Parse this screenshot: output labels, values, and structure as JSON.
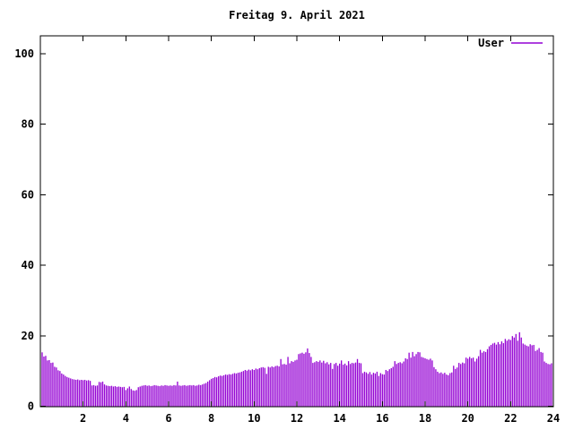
{
  "chart_data": {
    "type": "bar",
    "title": "Freitag 9. April 2021",
    "xlabel": "",
    "ylabel": "",
    "xlim": [
      0,
      24
    ],
    "ylim": [
      0,
      105
    ],
    "xticks": [
      2,
      4,
      6,
      8,
      10,
      12,
      14,
      16,
      18,
      20,
      22,
      24
    ],
    "yticks": [
      0,
      20,
      40,
      60,
      80,
      100
    ],
    "grid": false,
    "legend_position": "top-right",
    "legend": [
      {
        "name": "User",
        "color": "#9400d3"
      }
    ],
    "x_unit": "hour-of-day",
    "sample_interval_minutes": 5,
    "first_sample_hour": 0.0833,
    "values": [
      15.3,
      14.1,
      14.3,
      13.0,
      13.1,
      12.3,
      12.4,
      11.2,
      11.0,
      10.2,
      10.0,
      9.3,
      9.0,
      8.6,
      8.3,
      8.1,
      7.9,
      7.7,
      7.6,
      7.5,
      7.6,
      7.4,
      7.5,
      7.4,
      7.5,
      7.3,
      7.4,
      7.2,
      5.9,
      6.0,
      5.8,
      5.9,
      6.9,
      6.8,
      7.0,
      6.2,
      5.9,
      5.8,
      5.7,
      5.8,
      5.6,
      5.7,
      5.5,
      5.6,
      5.5,
      5.4,
      5.5,
      4.6,
      5.1,
      5.6,
      4.9,
      4.5,
      4.4,
      4.6,
      5.4,
      5.6,
      5.8,
      5.9,
      6.0,
      5.8,
      5.9,
      5.7,
      5.8,
      6.0,
      5.9,
      5.8,
      5.7,
      5.9,
      5.8,
      6.0,
      5.9,
      5.8,
      5.9,
      5.8,
      6.0,
      5.9,
      7.0,
      5.9,
      5.8,
      5.9,
      6.0,
      5.8,
      5.9,
      6.0,
      5.9,
      6.0,
      5.8,
      5.9,
      6.1,
      6.0,
      6.2,
      6.4,
      6.6,
      7.0,
      7.4,
      7.8,
      8.0,
      8.3,
      8.2,
      8.5,
      8.7,
      8.6,
      8.8,
      9.0,
      8.9,
      9.1,
      9.0,
      9.2,
      9.4,
      9.3,
      9.5,
      9.6,
      9.8,
      10.0,
      10.3,
      10.1,
      10.4,
      10.2,
      10.5,
      10.3,
      10.7,
      10.5,
      10.8,
      11.0,
      11.1,
      10.9,
      9.2,
      11.2,
      11.0,
      11.3,
      11.1,
      11.4,
      11.5,
      11.3,
      13.4,
      11.9,
      12.0,
      11.8,
      14.0,
      12.2,
      12.8,
      12.6,
      13.0,
      13.2,
      14.8,
      15.0,
      15.2,
      14.9,
      15.3,
      16.4,
      15.1,
      14.0,
      12.3,
      12.5,
      12.8,
      12.6,
      13.0,
      12.4,
      12.9,
      12.2,
      12.5,
      11.9,
      12.3,
      10.6,
      12.0,
      12.3,
      11.5,
      12.1,
      13.0,
      11.8,
      12.1,
      11.6,
      12.8,
      12.0,
      12.3,
      12.2,
      12.4,
      13.4,
      12.3,
      12.2,
      9.4,
      9.8,
      9.6,
      9.2,
      9.7,
      9.0,
      9.5,
      9.3,
      9.8,
      8.6,
      9.4,
      9.1,
      9.0,
      10.3,
      10.0,
      10.5,
      10.8,
      11.2,
      12.8,
      12.0,
      12.3,
      12.5,
      12.2,
      12.7,
      13.6,
      13.4,
      15.2,
      13.8,
      15.4,
      14.2,
      14.8,
      15.4,
      15.3,
      14.0,
      13.8,
      13.6,
      13.4,
      13.2,
      13.5,
      13.0,
      11.1,
      10.5,
      9.8,
      9.4,
      9.6,
      9.2,
      9.5,
      9.0,
      8.8,
      9.4,
      9.6,
      11.5,
      10.6,
      11.0,
      12.3,
      12.0,
      12.4,
      12.2,
      13.8,
      13.5,
      14.0,
      13.6,
      13.8,
      12.7,
      13.5,
      14.2,
      16.0,
      15.2,
      15.6,
      15.4,
      16.2,
      17.0,
      17.4,
      17.8,
      18.0,
      17.5,
      18.2,
      17.6,
      18.4,
      17.9,
      19.1,
      18.6,
      19.0,
      18.8,
      19.9,
      19.5,
      20.5,
      18.6,
      21.0,
      19.5,
      17.8,
      17.5,
      17.2,
      17.0,
      17.6,
      17.3,
      17.4,
      15.7,
      16.0,
      16.5,
      15.4,
      15.2,
      12.7,
      12.3,
      12.0,
      11.9,
      12.2
    ]
  },
  "colors": {
    "series": "#9400d3",
    "axis": "#000000",
    "background": "#ffffff",
    "text": "#000000"
  }
}
